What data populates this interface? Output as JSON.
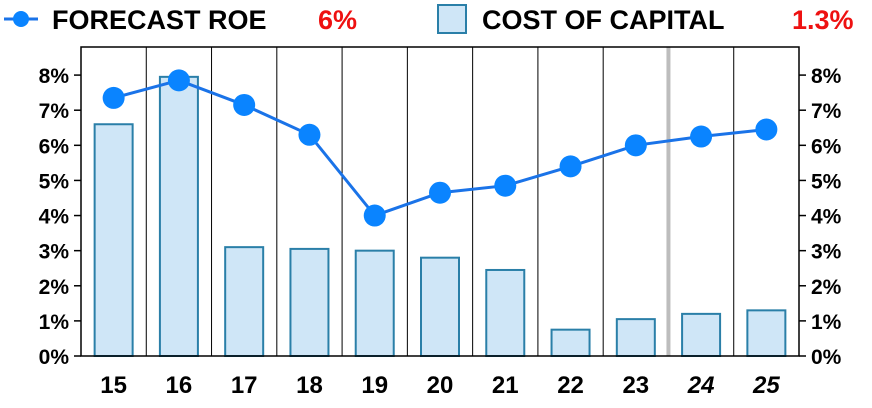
{
  "legend": {
    "roe_label": "FORECAST ROE",
    "roe_value": "6%",
    "coc_label": "COST OF CAPITAL",
    "coc_value": "1.3%"
  },
  "colors": {
    "line": "#1a73e8",
    "marker": "#0a84ff",
    "bar_fill": "#cfe6f7",
    "bar_stroke": "#2a7fa8",
    "value_red": "#ee1111",
    "grid": "#000000",
    "forecast_divider": "#bdbdbd"
  },
  "chart_data": {
    "type": "bar",
    "categories": [
      "15",
      "16",
      "17",
      "18",
      "19",
      "20",
      "21",
      "22",
      "23",
      "24",
      "25"
    ],
    "estimated_categories": [
      "24",
      "25"
    ],
    "series": [
      {
        "name": "COST OF CAPITAL",
        "type": "bar",
        "values": [
          6.6,
          7.95,
          3.1,
          3.05,
          3.0,
          2.8,
          2.45,
          0.75,
          1.05,
          1.2,
          1.3
        ]
      },
      {
        "name": "FORECAST ROE",
        "type": "line",
        "values": [
          7.35,
          7.85,
          7.15,
          6.3,
          4.0,
          4.65,
          4.85,
          5.4,
          6.0,
          6.25,
          6.45
        ]
      }
    ],
    "ylim": [
      0,
      8.8
    ],
    "y_ticks": [
      "0%",
      "1%",
      "2%",
      "3%",
      "4%",
      "5%",
      "6%",
      "7%",
      "8%"
    ],
    "y_tick_values": [
      0,
      1,
      2,
      3,
      4,
      5,
      6,
      7,
      8
    ],
    "grid": "vertical",
    "legend_position": "top"
  }
}
